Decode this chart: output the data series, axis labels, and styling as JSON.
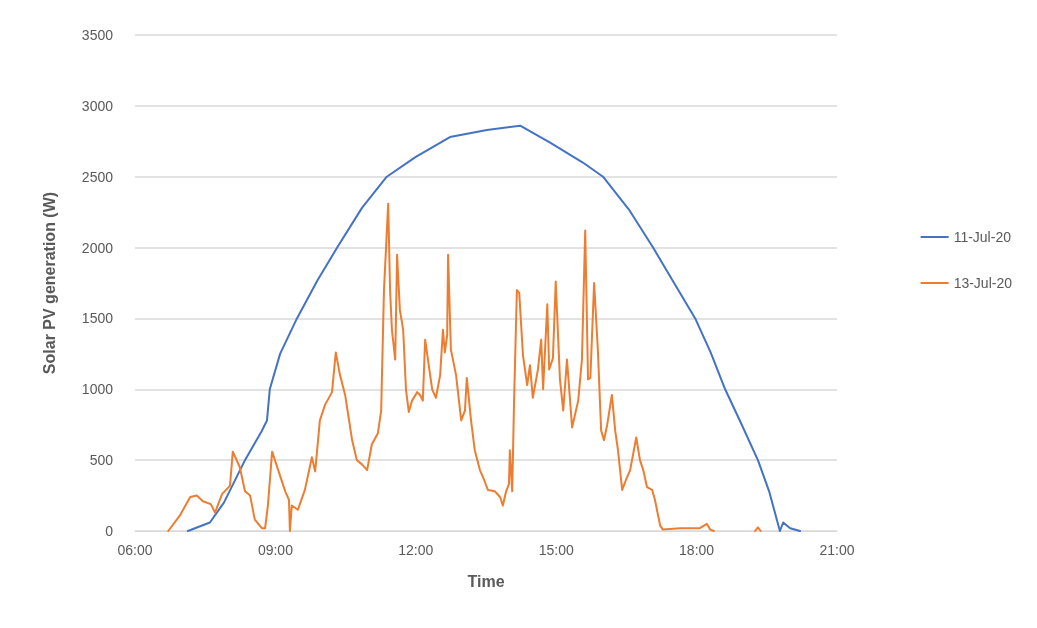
{
  "chart_data": {
    "type": "line",
    "xlabel": "Time",
    "ylabel": "Solar PV generation (W)",
    "xlim": [
      6,
      21
    ],
    "xticks": [
      {
        "value": 6,
        "label": "06:00"
      },
      {
        "value": 9,
        "label": "09:00"
      },
      {
        "value": 12,
        "label": "12:00"
      },
      {
        "value": 15,
        "label": "15:00"
      },
      {
        "value": 18,
        "label": "18:00"
      },
      {
        "value": 21,
        "label": "21:00"
      }
    ],
    "ylim": [
      0,
      3500
    ],
    "yticks": [
      0,
      500,
      1000,
      1500,
      2000,
      2500,
      3000,
      3500
    ],
    "grid": "y",
    "legend": "right",
    "marker": "none",
    "line_style": "solid",
    "series": [
      {
        "name": "11-Jul-20",
        "color": "#4472c4",
        "x": [
          7.13,
          7.6,
          7.9,
          8.35,
          8.7,
          8.82,
          8.88,
          9.1,
          9.46,
          9.9,
          10.32,
          10.85,
          11.38,
          12.0,
          12.73,
          13.52,
          14.23,
          14.87,
          15.57,
          16.0,
          16.55,
          17.07,
          17.5,
          17.97,
          18.3,
          18.61,
          18.95,
          19.31,
          19.55,
          19.78,
          19.85,
          20.0,
          20.21
        ],
        "values": [
          0,
          60,
          200,
          500,
          700,
          780,
          1000,
          1250,
          1500,
          1770,
          2000,
          2280,
          2500,
          2640,
          2780,
          2830,
          2860,
          2740,
          2600,
          2500,
          2270,
          2000,
          1760,
          1500,
          1260,
          1000,
          760,
          500,
          280,
          0,
          60,
          20,
          0
        ]
      },
      {
        "name": "13-Jul-20",
        "color": "#ed7d31",
        "x": [
          6.71,
          6.96,
          7.18,
          7.32,
          7.45,
          7.62,
          7.71,
          7.86,
          8.03,
          8.09,
          8.24,
          8.35,
          8.46,
          8.56,
          8.71,
          8.78,
          8.84,
          8.93,
          9.06,
          9.21,
          9.29,
          9.31,
          9.35,
          9.48,
          9.63,
          9.78,
          9.85,
          9.95,
          10.06,
          10.21,
          10.29,
          10.38,
          10.49,
          10.64,
          10.74,
          10.85,
          10.96,
          11.06,
          11.19,
          11.26,
          11.32,
          11.41,
          11.45,
          11.49,
          11.56,
          11.6,
          11.66,
          11.73,
          11.79,
          11.85,
          11.92,
          12.03,
          12.09,
          12.15,
          12.2,
          12.26,
          12.35,
          12.43,
          12.52,
          12.58,
          12.62,
          12.67,
          12.69,
          12.75,
          12.86,
          12.97,
          13.05,
          13.09,
          13.18,
          13.26,
          13.37,
          13.46,
          13.54,
          13.69,
          13.8,
          13.86,
          13.93,
          13.99,
          14.01,
          14.06,
          14.1,
          14.16,
          14.21,
          14.29,
          14.38,
          14.44,
          14.5,
          14.61,
          14.68,
          14.72,
          14.81,
          14.85,
          14.93,
          14.99,
          15.08,
          15.15,
          15.23,
          15.34,
          15.47,
          15.55,
          15.62,
          15.68,
          15.73,
          15.81,
          15.89,
          15.96,
          16.02,
          16.09,
          16.19,
          16.26,
          16.32,
          16.41,
          16.49,
          16.58,
          16.71,
          16.79,
          16.86,
          16.94,
          17.05,
          17.11,
          17.22,
          17.28,
          17.65,
          18.07,
          18.22,
          18.29,
          18.37
        ],
        "values": [
          0,
          110,
          240,
          250,
          210,
          190,
          130,
          260,
          320,
          560,
          450,
          280,
          250,
          80,
          20,
          20,
          180,
          560,
          430,
          280,
          220,
          0,
          180,
          150,
          290,
          520,
          420,
          780,
          890,
          980,
          1260,
          1100,
          960,
          640,
          500,
          470,
          430,
          610,
          690,
          850,
          1700,
          2310,
          1700,
          1420,
          1210,
          1950,
          1560,
          1420,
          1000,
          840,
          920,
          980,
          960,
          920,
          1350,
          1210,
          1000,
          940,
          1100,
          1420,
          1260,
          1380,
          1950,
          1280,
          1100,
          780,
          850,
          1080,
          780,
          570,
          430,
          360,
          290,
          280,
          240,
          180,
          280,
          330,
          570,
          280,
          920,
          1700,
          1680,
          1240,
          1030,
          1170,
          940,
          1140,
          1350,
          1000,
          1600,
          1140,
          1220,
          1760,
          1070,
          850,
          1210,
          730,
          920,
          1210,
          2120,
          1070,
          1080,
          1750,
          1280,
          710,
          640,
          750,
          960,
          710,
          570,
          290,
          360,
          430,
          660,
          500,
          430,
          310,
          290,
          220,
          40,
          10,
          20,
          20,
          50,
          10,
          0
        ]
      },
      {
        "color": "#ed7d31",
        "x": [
          19.25,
          19.31,
          19.37
        ],
        "values": [
          0,
          25,
          0
        ]
      }
    ]
  }
}
